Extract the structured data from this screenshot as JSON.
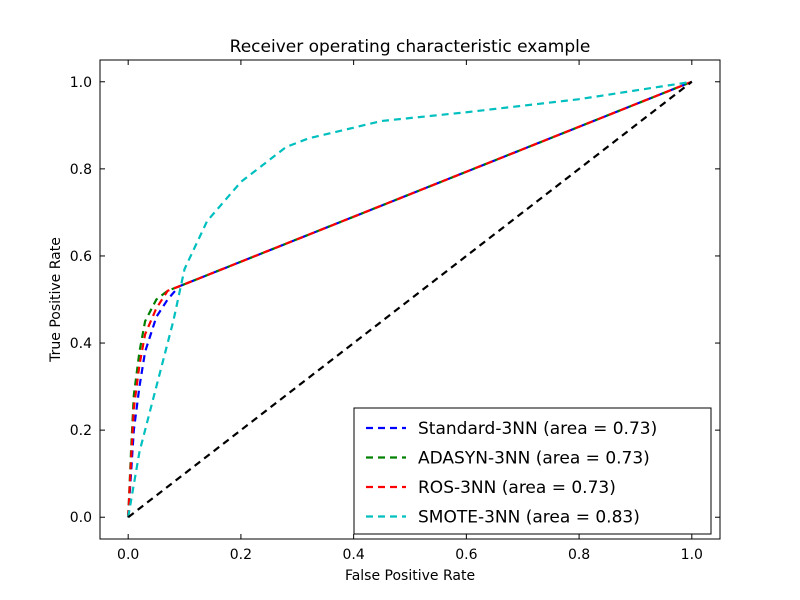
{
  "chart_data": {
    "type": "line",
    "title": "Receiver operating characteristic example",
    "xlabel": "False Positive Rate",
    "ylabel": "True Positive Rate",
    "xlim": [
      -0.05,
      1.05
    ],
    "ylim": [
      -0.05,
      1.05
    ],
    "xticks": [
      0.0,
      0.2,
      0.4,
      0.6,
      0.8,
      1.0
    ],
    "yticks": [
      0.0,
      0.2,
      0.4,
      0.6,
      0.8,
      1.0
    ],
    "xtick_labels": [
      "0.0",
      "0.2",
      "0.4",
      "0.6",
      "0.8",
      "1.0"
    ],
    "ytick_labels": [
      "0.0",
      "0.2",
      "0.4",
      "0.6",
      "0.8",
      "1.0"
    ],
    "grid": false,
    "legend_position": "lower-right",
    "series": [
      {
        "name": "Standard-3NN (area = 0.73)",
        "color": "#0000ff",
        "style": "dashed",
        "x": [
          0.0,
          0.005,
          0.01,
          0.02,
          0.03,
          0.05,
          0.07,
          0.09,
          1.0
        ],
        "y": [
          0.0,
          0.1,
          0.2,
          0.3,
          0.38,
          0.46,
          0.5,
          0.53,
          1.0
        ]
      },
      {
        "name": "ADASYN-3NN (area = 0.73)",
        "color": "#008000",
        "style": "dashed",
        "x": [
          0.0,
          0.005,
          0.01,
          0.02,
          0.03,
          0.05,
          0.07,
          0.09,
          1.0
        ],
        "y": [
          0.0,
          0.15,
          0.28,
          0.38,
          0.45,
          0.5,
          0.52,
          0.53,
          1.0
        ]
      },
      {
        "name": "ROS-3NN (area = 0.73)",
        "color": "#ff0000",
        "style": "dashed",
        "x": [
          0.0,
          0.005,
          0.01,
          0.02,
          0.03,
          0.05,
          0.07,
          0.09,
          1.0
        ],
        "y": [
          0.0,
          0.13,
          0.25,
          0.35,
          0.42,
          0.48,
          0.52,
          0.53,
          1.0
        ]
      },
      {
        "name": "SMOTE-3NN (area = 0.83)",
        "color": "#00bfbf",
        "style": "dashed",
        "x": [
          0.0,
          0.02,
          0.05,
          0.08,
          0.1,
          0.14,
          0.2,
          0.28,
          0.32,
          0.45,
          0.6,
          0.8,
          1.0
        ],
        "y": [
          0.0,
          0.15,
          0.3,
          0.45,
          0.57,
          0.68,
          0.77,
          0.85,
          0.87,
          0.91,
          0.93,
          0.96,
          1.0
        ]
      },
      {
        "name": "",
        "color": "#000000",
        "style": "dashed",
        "x": [
          0.0,
          1.0
        ],
        "y": [
          0.0,
          1.0
        ]
      }
    ]
  }
}
